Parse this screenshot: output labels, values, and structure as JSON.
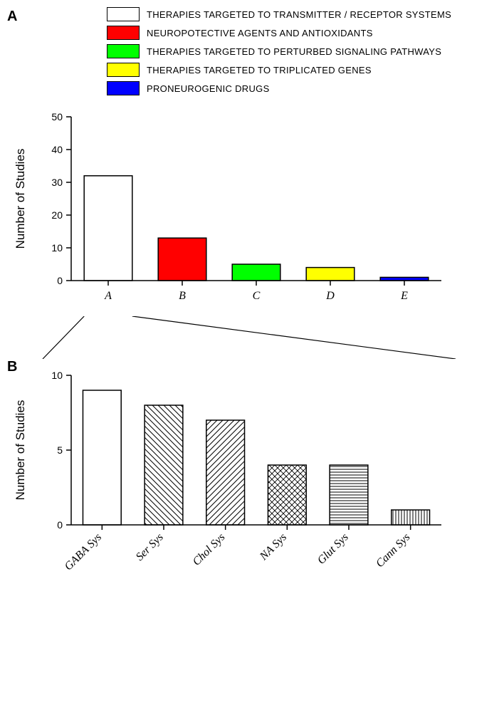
{
  "panel_A": {
    "label": "A",
    "legend": [
      {
        "color": "#ffffff",
        "label": "THERAPIES TARGETED TO TRANSMITTER / RECEPTOR SYSTEMS"
      },
      {
        "color": "#ff0000",
        "label": "NEUROPOTECTIVE AGENTS AND ANTIOXIDANTS"
      },
      {
        "color": "#00ff00",
        "label": "THERAPIES TARGETED TO PERTURBED SIGNALING PATHWAYS"
      },
      {
        "color": "#ffff00",
        "label": "THERAPIES TARGETED TO TRIPLICATED GENES"
      },
      {
        "color": "#0000ff",
        "label": "PRONEUROGENIC DRUGS"
      }
    ],
    "chart": {
      "type": "bar",
      "ylabel": "Number of Studies",
      "ylim": [
        0,
        50
      ],
      "yticks": [
        0,
        10,
        20,
        30,
        40,
        50
      ],
      "categories": [
        "A",
        "B",
        "C",
        "D",
        "E"
      ],
      "values": [
        32,
        13,
        5,
        4,
        1
      ],
      "bar_colors": [
        "#ffffff",
        "#ff0000",
        "#00ff00",
        "#ffff00",
        "#0000ff"
      ],
      "bar_width": 0.65,
      "axis_color": "#000000",
      "label_fontsize": 16,
      "tick_fontsize": 14,
      "ylabel_fontsize": 17
    }
  },
  "panel_B": {
    "label": "B",
    "chart": {
      "type": "bar",
      "ylabel": "Number of Studies",
      "ylim": [
        0,
        10
      ],
      "yticks": [
        0,
        5,
        10
      ],
      "categories": [
        "GABA Sys",
        "Ser Sys",
        "Chol Sys",
        "NA Sys",
        "Glut Sys",
        "Cann Sys"
      ],
      "values": [
        9,
        8,
        7,
        4,
        4,
        1
      ],
      "patterns": [
        "none",
        "diag-back",
        "diag-fwd",
        "cross",
        "horiz",
        "vert"
      ],
      "bar_fill": "#ffffff",
      "bar_width": 0.62,
      "axis_color": "#000000",
      "label_fontsize": 16,
      "tick_fontsize": 14,
      "ylabel_fontsize": 17,
      "label_rotation": 45
    }
  },
  "connector": {
    "stroke": "#000000",
    "stroke_width": 1.2
  }
}
